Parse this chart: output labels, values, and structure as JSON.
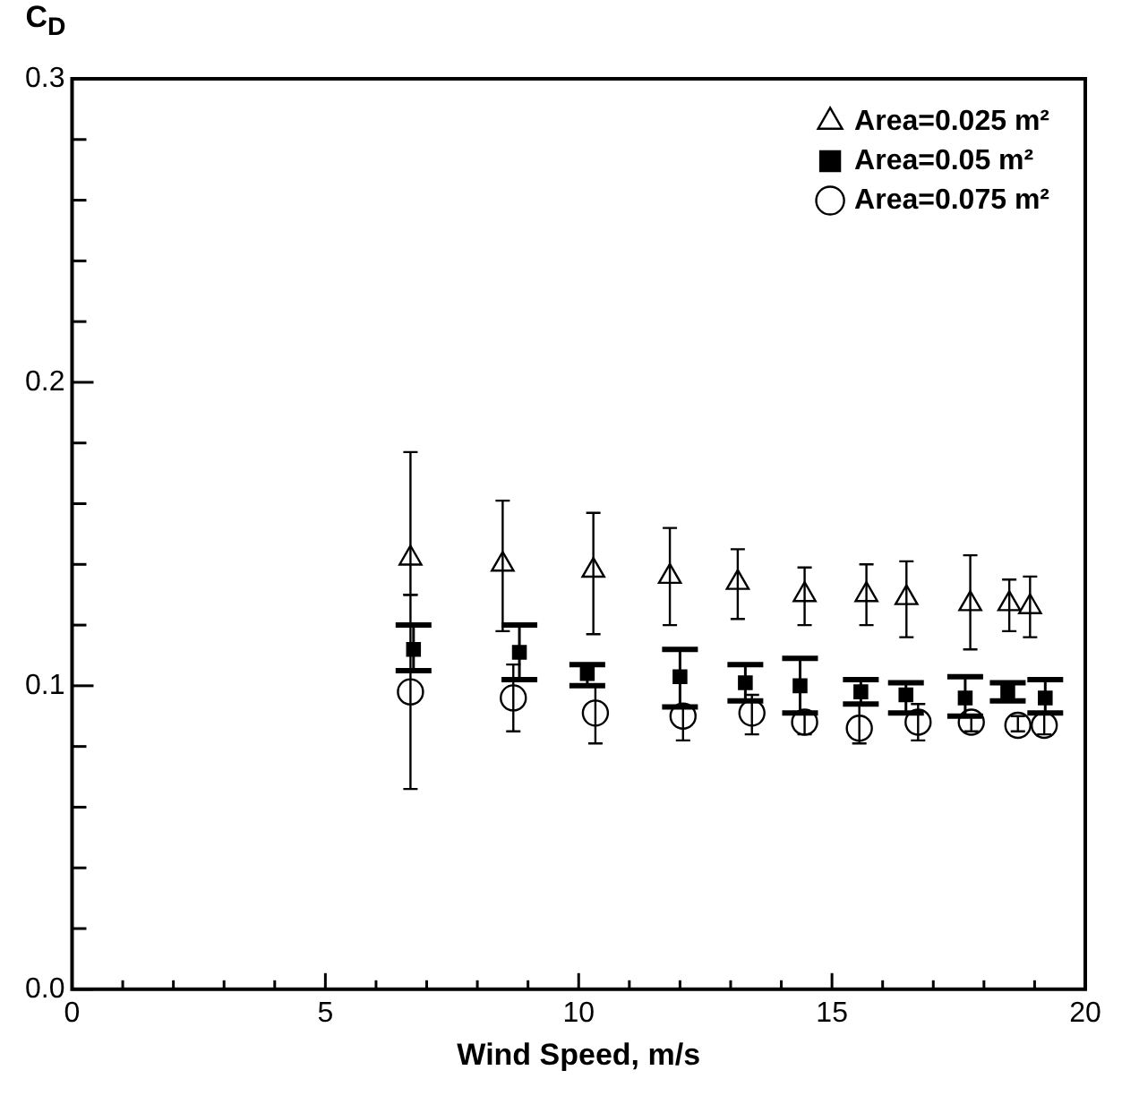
{
  "chart_data": {
    "type": "scatter",
    "xlabel": "Wind Speed, m/s",
    "ylabel": "C$_{D}$",
    "xlim": [
      0,
      20
    ],
    "ylim": [
      0,
      0.3
    ],
    "xticks": [
      0,
      {
        "value": 1,
        "label": null
      },
      {
        "value": 2,
        "label": null
      },
      {
        "value": 3,
        "label": null
      },
      {
        "value": 4,
        "label": null
      },
      5,
      {
        "value": 6,
        "label": null
      },
      {
        "value": 7,
        "label": null
      },
      {
        "value": 8,
        "label": null
      },
      {
        "value": 9,
        "label": null
      },
      10,
      {
        "value": 11,
        "label": null
      },
      {
        "value": 12,
        "label": null
      },
      {
        "value": 13,
        "label": null
      },
      {
        "value": 14,
        "label": null
      },
      15,
      {
        "value": 16,
        "label": null
      },
      {
        "value": 17,
        "label": null
      },
      {
        "value": 18,
        "label": null
      },
      {
        "value": 19,
        "label": null
      },
      20
    ],
    "yticks": [
      {
        "value": 0,
        "label": "0.0"
      },
      {
        "value": 0.02,
        "label": null
      },
      {
        "value": 0.04,
        "label": null
      },
      {
        "value": 0.06,
        "label": null
      },
      {
        "value": 0.08,
        "label": null
      },
      0.1,
      {
        "value": 0.12,
        "label": null
      },
      {
        "value": 0.14,
        "label": null
      },
      {
        "value": 0.16,
        "label": null
      },
      {
        "value": 0.18,
        "label": null
      },
      0.2,
      {
        "value": 0.22,
        "label": null
      },
      {
        "value": 0.24,
        "label": null
      },
      {
        "value": 0.26,
        "label": null
      },
      {
        "value": 0.28,
        "label": null
      },
      0.3
    ],
    "legend": "top right",
    "series": [
      {
        "name": "Area=0.025 m²",
        "color": "#000000",
        "marker": "triangle",
        "x": [
          6.68,
          8.5,
          10.29,
          11.8,
          13.14,
          14.46,
          15.68,
          16.47,
          17.73,
          18.5,
          18.91
        ],
        "values": [
          0.142,
          0.14,
          0.138,
          0.136,
          0.134,
          0.13,
          0.13,
          0.129,
          0.127,
          0.127,
          0.126
        ],
        "errors": [
          [
            0.13,
            0.177
          ],
          [
            0.118,
            0.161
          ],
          [
            0.117,
            0.157
          ],
          [
            0.12,
            0.152
          ],
          [
            0.122,
            0.145
          ],
          [
            0.12,
            0.139
          ],
          [
            0.12,
            0.14
          ],
          [
            0.116,
            0.141
          ],
          [
            0.112,
            0.143
          ],
          [
            0.118,
            0.135
          ],
          [
            0.116,
            0.136
          ]
        ]
      },
      {
        "name": "Area=0.05 m²",
        "color": "#000000",
        "marker": "square",
        "x": [
          6.74,
          8.83,
          10.17,
          12.0,
          13.29,
          14.37,
          15.57,
          16.46,
          17.63,
          18.47,
          19.21
        ],
        "values": [
          0.112,
          0.111,
          0.104,
          0.103,
          0.101,
          0.1,
          0.098,
          0.097,
          0.096,
          0.098,
          0.096
        ],
        "errors": [
          [
            0.105,
            0.12
          ],
          [
            0.102,
            0.12
          ],
          [
            0.1,
            0.107
          ],
          [
            0.093,
            0.112
          ],
          [
            0.095,
            0.107
          ],
          [
            0.091,
            0.109
          ],
          [
            0.094,
            0.102
          ],
          [
            0.091,
            0.101
          ],
          [
            0.09,
            0.103
          ],
          [
            0.095,
            0.101
          ],
          [
            0.091,
            0.102
          ]
        ]
      },
      {
        "name": "Area=0.075 m²",
        "color": "#000000",
        "marker": "circle",
        "x": [
          6.68,
          8.71,
          10.33,
          12.06,
          13.42,
          14.46,
          15.54,
          16.7,
          17.75,
          18.67,
          19.19
        ],
        "values": [
          0.098,
          0.096,
          0.091,
          0.09,
          0.091,
          0.088,
          0.086,
          0.088,
          0.088,
          0.087,
          0.087
        ],
        "errors": [
          [
            0.066,
            0.13
          ],
          [
            0.085,
            0.107
          ],
          [
            0.081,
            0.1
          ],
          [
            0.082,
            0.093
          ],
          [
            0.084,
            0.097
          ],
          [
            0.084,
            0.091
          ],
          [
            0.081,
            0.094
          ],
          [
            0.082,
            0.094
          ],
          [
            0.085,
            0.09
          ],
          [
            0.085,
            0.09
          ],
          [
            0.084,
            0.091
          ]
        ]
      }
    ]
  }
}
